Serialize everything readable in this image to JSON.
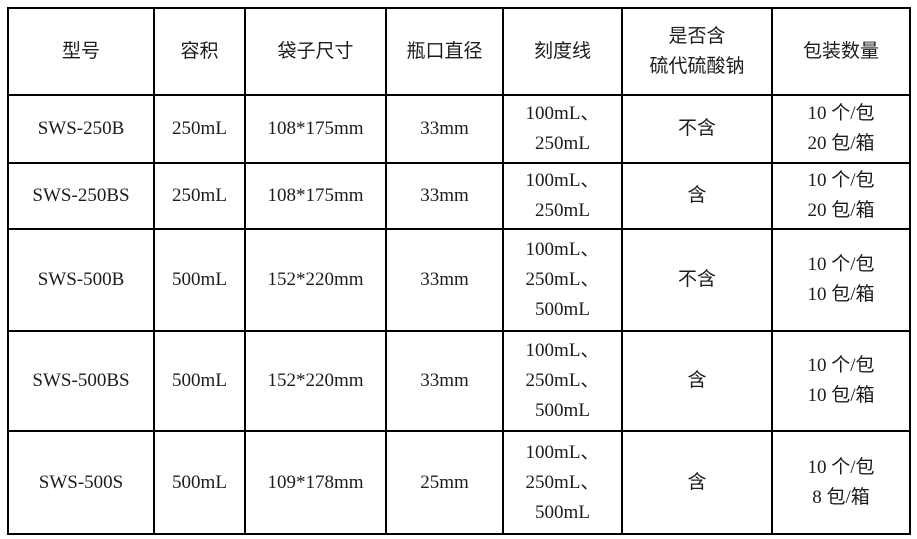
{
  "table": {
    "columns": [
      {
        "key": "model",
        "label": "型号"
      },
      {
        "key": "capacity",
        "label": "容积"
      },
      {
        "key": "bag_size",
        "label": "袋子尺寸"
      },
      {
        "key": "mouth_diameter",
        "label": "瓶口直径"
      },
      {
        "key": "graduation_lines",
        "label": "刻度线"
      },
      {
        "key": "sodium_thiosulfate",
        "label": [
          "是否含",
          "硫代硫酸钠"
        ]
      },
      {
        "key": "packing_quantity",
        "label": "包装数量"
      }
    ],
    "rows": [
      {
        "model": "SWS-250B",
        "capacity": "250mL",
        "bag_size": "108*175mm",
        "mouth_diameter": "33mm",
        "graduation_lines": [
          "100mL、",
          "250mL"
        ],
        "sodium_thiosulfate": "不含",
        "packing_quantity": [
          "10 个/包",
          "20 包/箱"
        ]
      },
      {
        "model": "SWS-250BS",
        "capacity": "250mL",
        "bag_size": "108*175mm",
        "mouth_diameter": "33mm",
        "graduation_lines": [
          "100mL、",
          "250mL"
        ],
        "sodium_thiosulfate": "含",
        "packing_quantity": [
          "10 个/包",
          "20 包/箱"
        ]
      },
      {
        "model": "SWS-500B",
        "capacity": "500mL",
        "bag_size": "152*220mm",
        "mouth_diameter": "33mm",
        "graduation_lines": [
          "100mL、",
          "250mL、",
          "500mL"
        ],
        "sodium_thiosulfate": "不含",
        "packing_quantity": [
          "10 个/包",
          "10 包/箱"
        ]
      },
      {
        "model": "SWS-500BS",
        "capacity": "500mL",
        "bag_size": "152*220mm",
        "mouth_diameter": "33mm",
        "graduation_lines": [
          "100mL、",
          "250mL、",
          "500mL"
        ],
        "sodium_thiosulfate": "含",
        "packing_quantity": [
          "10 个/包",
          "10 包/箱"
        ]
      },
      {
        "model": "SWS-500S",
        "capacity": "500mL",
        "bag_size": "109*178mm",
        "mouth_diameter": "25mm",
        "graduation_lines": [
          "100mL、",
          "250mL、",
          "500mL"
        ],
        "sodium_thiosulfate": "含",
        "packing_quantity": [
          "10 个/包",
          "8 包/箱"
        ]
      }
    ]
  }
}
